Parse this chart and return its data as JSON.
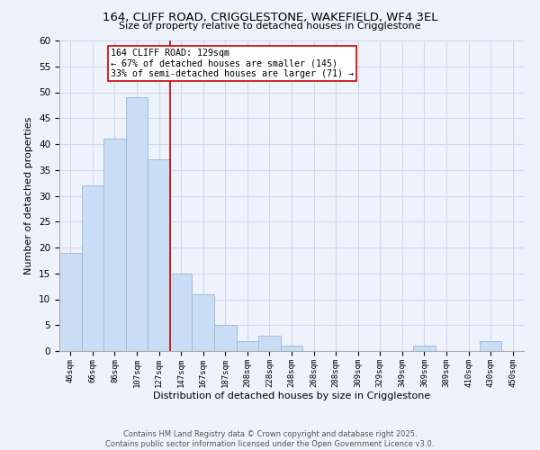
{
  "title": "164, CLIFF ROAD, CRIGGLESTONE, WAKEFIELD, WF4 3EL",
  "subtitle": "Size of property relative to detached houses in Crigglestone",
  "xlabel": "Distribution of detached houses by size in Crigglestone",
  "ylabel": "Number of detached properties",
  "bin_labels": [
    "46sqm",
    "66sqm",
    "86sqm",
    "107sqm",
    "127sqm",
    "147sqm",
    "167sqm",
    "187sqm",
    "208sqm",
    "228sqm",
    "248sqm",
    "268sqm",
    "288sqm",
    "309sqm",
    "329sqm",
    "349sqm",
    "369sqm",
    "389sqm",
    "410sqm",
    "430sqm",
    "450sqm"
  ],
  "bar_values": [
    19,
    32,
    41,
    49,
    37,
    15,
    11,
    5,
    2,
    3,
    1,
    0,
    0,
    0,
    0,
    0,
    1,
    0,
    0,
    2,
    0
  ],
  "bar_color": "#c9ddf5",
  "bar_edge_color": "#9ab8d8",
  "vline_x": 4.5,
  "vline_color": "#cc0000",
  "annotation_text": "164 CLIFF ROAD: 129sqm\n← 67% of detached houses are smaller (145)\n33% of semi-detached houses are larger (71) →",
  "annotation_box_color": "#ffffff",
  "annotation_box_edge": "#cc0000",
  "ylim": [
    0,
    60
  ],
  "yticks": [
    0,
    5,
    10,
    15,
    20,
    25,
    30,
    35,
    40,
    45,
    50,
    55,
    60
  ],
  "footer_line1": "Contains HM Land Registry data © Crown copyright and database right 2025.",
  "footer_line2": "Contains public sector information licensed under the Open Government Licence v3.0.",
  "background_color": "#eef2fb",
  "grid_color": "#d0d8ec"
}
